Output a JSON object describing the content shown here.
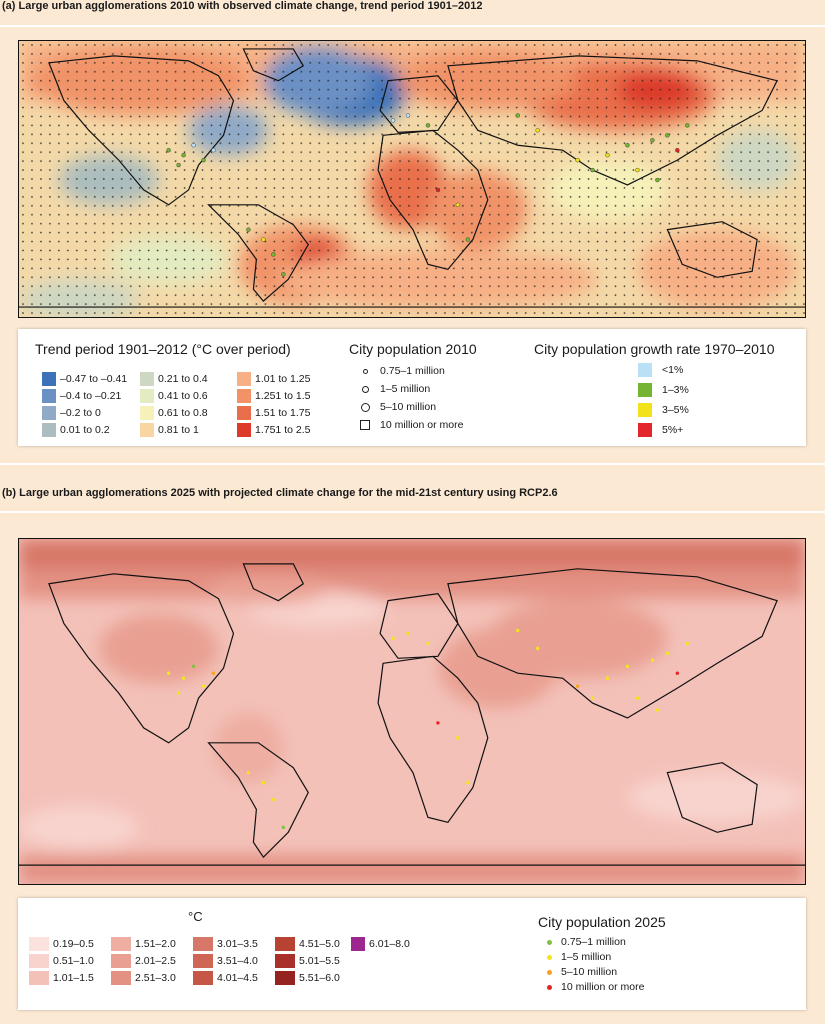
{
  "panel_a": {
    "title": "(a) Large urban agglomerations 2010 with observed climate change, trend period 1901–2012",
    "legend": {
      "trend_title": "Trend period 1901–2012 (°C over period)",
      "trend_classes": [
        {
          "label": "–0.47 to –0.41",
          "color": "#3d72b8"
        },
        {
          "label": "–0.4 to –0.21",
          "color": "#6a90c4"
        },
        {
          "label": "–0.2 to 0",
          "color": "#8fa9c6"
        },
        {
          "label": "0.01 to 0.2",
          "color": "#abbdbe"
        },
        {
          "label": "0.21 to 0.4",
          "color": "#cdd7c2"
        },
        {
          "label": "0.41 to 0.6",
          "color": "#e3ebc0"
        },
        {
          "label": "0.61 to 0.8",
          "color": "#f6f1b9"
        },
        {
          "label": "0.81 to 1",
          "color": "#f9d5a1"
        },
        {
          "label": "1.01 to 1.25",
          "color": "#f7b085"
        },
        {
          "label": "1.251 to 1.5",
          "color": "#f19367"
        },
        {
          "label": "1.51 to 1.75",
          "color": "#e96f4c"
        },
        {
          "label": "1.751 to 2.5",
          "color": "#dc3a2b"
        }
      ],
      "pop_title": "City population 2010",
      "pop_classes": [
        "0.75–1 million",
        "1–5 million",
        "5–10 million",
        "10 million or more"
      ],
      "growth_title": "City population growth rate 1970–2010",
      "growth_classes": [
        {
          "label": "<1%",
          "color": "#b9e0f4"
        },
        {
          "label": "1–3%",
          "color": "#73b533"
        },
        {
          "label": "3–5%",
          "color": "#f1e21c"
        },
        {
          "label": "5%+",
          "color": "#e3262c"
        }
      ]
    }
  },
  "panel_b": {
    "title": "(b) Large urban agglomerations 2025 with projected climate change for the mid-21st century using RCP2.6",
    "legend": {
      "unit": "°C",
      "classes": [
        {
          "label": "0.19–0.5",
          "color": "#fbe2df"
        },
        {
          "label": "0.51–1.0",
          "color": "#f8d3cd"
        },
        {
          "label": "1.01–1.5",
          "color": "#f3c1b8"
        },
        {
          "label": "1.51–2.0",
          "color": "#eeaea2"
        },
        {
          "label": "2.01–2.5",
          "color": "#e9a093"
        },
        {
          "label": "2.51–3.0",
          "color": "#e39183"
        },
        {
          "label": "3.01–3.5",
          "color": "#d77767"
        },
        {
          "label": "3.51–4.0",
          "color": "#cf6655"
        },
        {
          "label": "4.01–4.5",
          "color": "#c65646"
        },
        {
          "label": "4.51–5.0",
          "color": "#b84234"
        },
        {
          "label": "5.01–5.5",
          "color": "#a9302a"
        },
        {
          "label": "5.51–6.0",
          "color": "#952320"
        },
        {
          "label": "6.01–8.0",
          "color": "#9c2790"
        }
      ],
      "pop_title": "City population 2025",
      "pop_classes": [
        {
          "label": "0.75–1 million",
          "color": "#7fc241"
        },
        {
          "label": "1–5 million",
          "color": "#f2e51d"
        },
        {
          "label": "5–10 million",
          "color": "#f7a21b"
        },
        {
          "label": "10 million or more",
          "color": "#e52329"
        }
      ]
    }
  }
}
